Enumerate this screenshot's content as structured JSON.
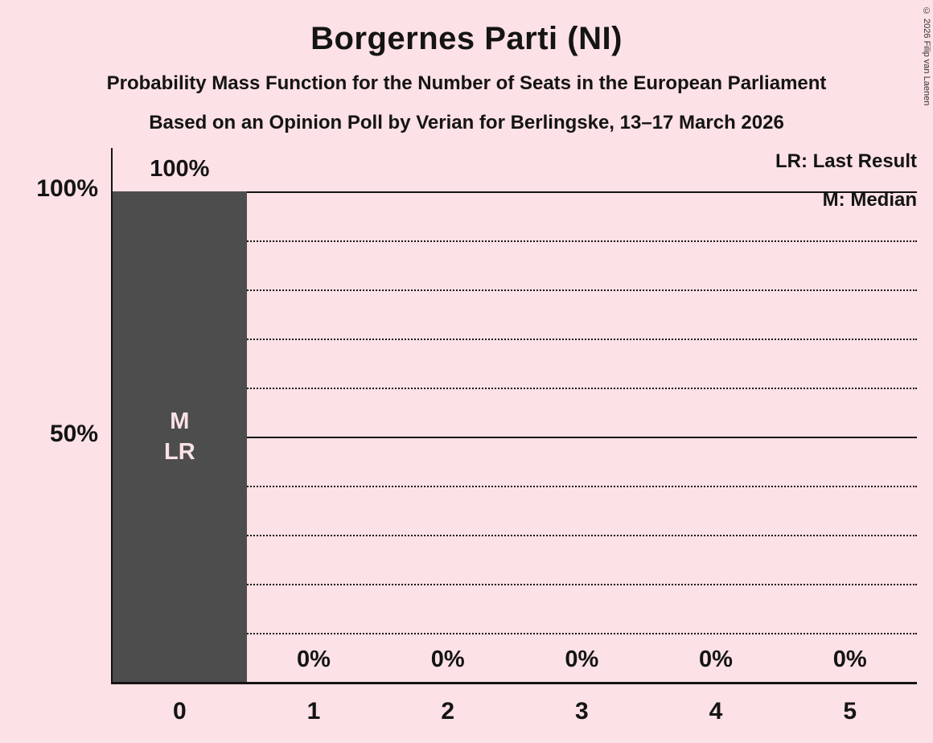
{
  "title": "Borgernes Parti (NI)",
  "subtitle1": "Probability Mass Function for the Number of Seats in the European Parliament",
  "subtitle2": "Based on an Opinion Poll by Verian for Berlingske, 13–17 March 2026",
  "copyright": "© 2026 Filip van Laenen",
  "legend": {
    "lr": "LR: Last Result",
    "m": "M: Median"
  },
  "colors": {
    "background": "#fce1e6",
    "bar": "#4d4d4d",
    "text": "#141414",
    "bar_label": "#fce1e6"
  },
  "chart_data": {
    "type": "bar",
    "title": "Borgernes Parti (NI)",
    "categories": [
      "0",
      "1",
      "2",
      "3",
      "4",
      "5"
    ],
    "values": [
      100,
      0,
      0,
      0,
      0,
      0
    ],
    "value_labels": [
      "100%",
      "0%",
      "0%",
      "0%",
      "0%",
      "0%"
    ],
    "bar_annotations": [
      [
        "M",
        "LR"
      ],
      [],
      [],
      [],
      [],
      []
    ],
    "y_ticks": [
      {
        "value": 100,
        "label": "100%"
      },
      {
        "value": 50,
        "label": "50%"
      }
    ],
    "gridlines": {
      "solid": [
        100,
        50
      ],
      "dotted": [
        90,
        80,
        70,
        60,
        40,
        30,
        20,
        10
      ]
    },
    "ylim": [
      0,
      100
    ],
    "xlabel": "",
    "ylabel": "",
    "legend_position": "top-right",
    "grid": true
  }
}
